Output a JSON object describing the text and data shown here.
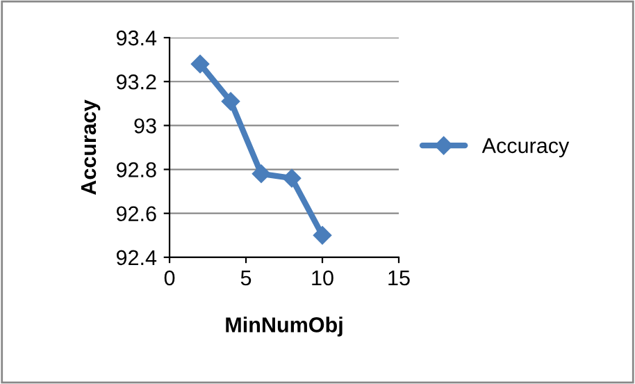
{
  "chart_data": {
    "type": "line",
    "xlabel": "MinNumObj",
    "ylabel": "Accuracy",
    "x": [
      2,
      4,
      6,
      8,
      10
    ],
    "series": [
      {
        "name": "Accuracy",
        "color": "#4a7ebb",
        "values": [
          93.28,
          93.11,
          92.78,
          92.76,
          92.5
        ]
      }
    ],
    "xlim": [
      0,
      15
    ],
    "xticks": [
      0,
      5,
      10,
      15
    ],
    "ylim": [
      92.4,
      93.4
    ],
    "yticks": [
      92.4,
      92.6,
      92.8,
      93,
      93.2,
      93.4
    ],
    "grid": "y",
    "legend": "right",
    "marker": "diamond",
    "line_style": "solid"
  }
}
